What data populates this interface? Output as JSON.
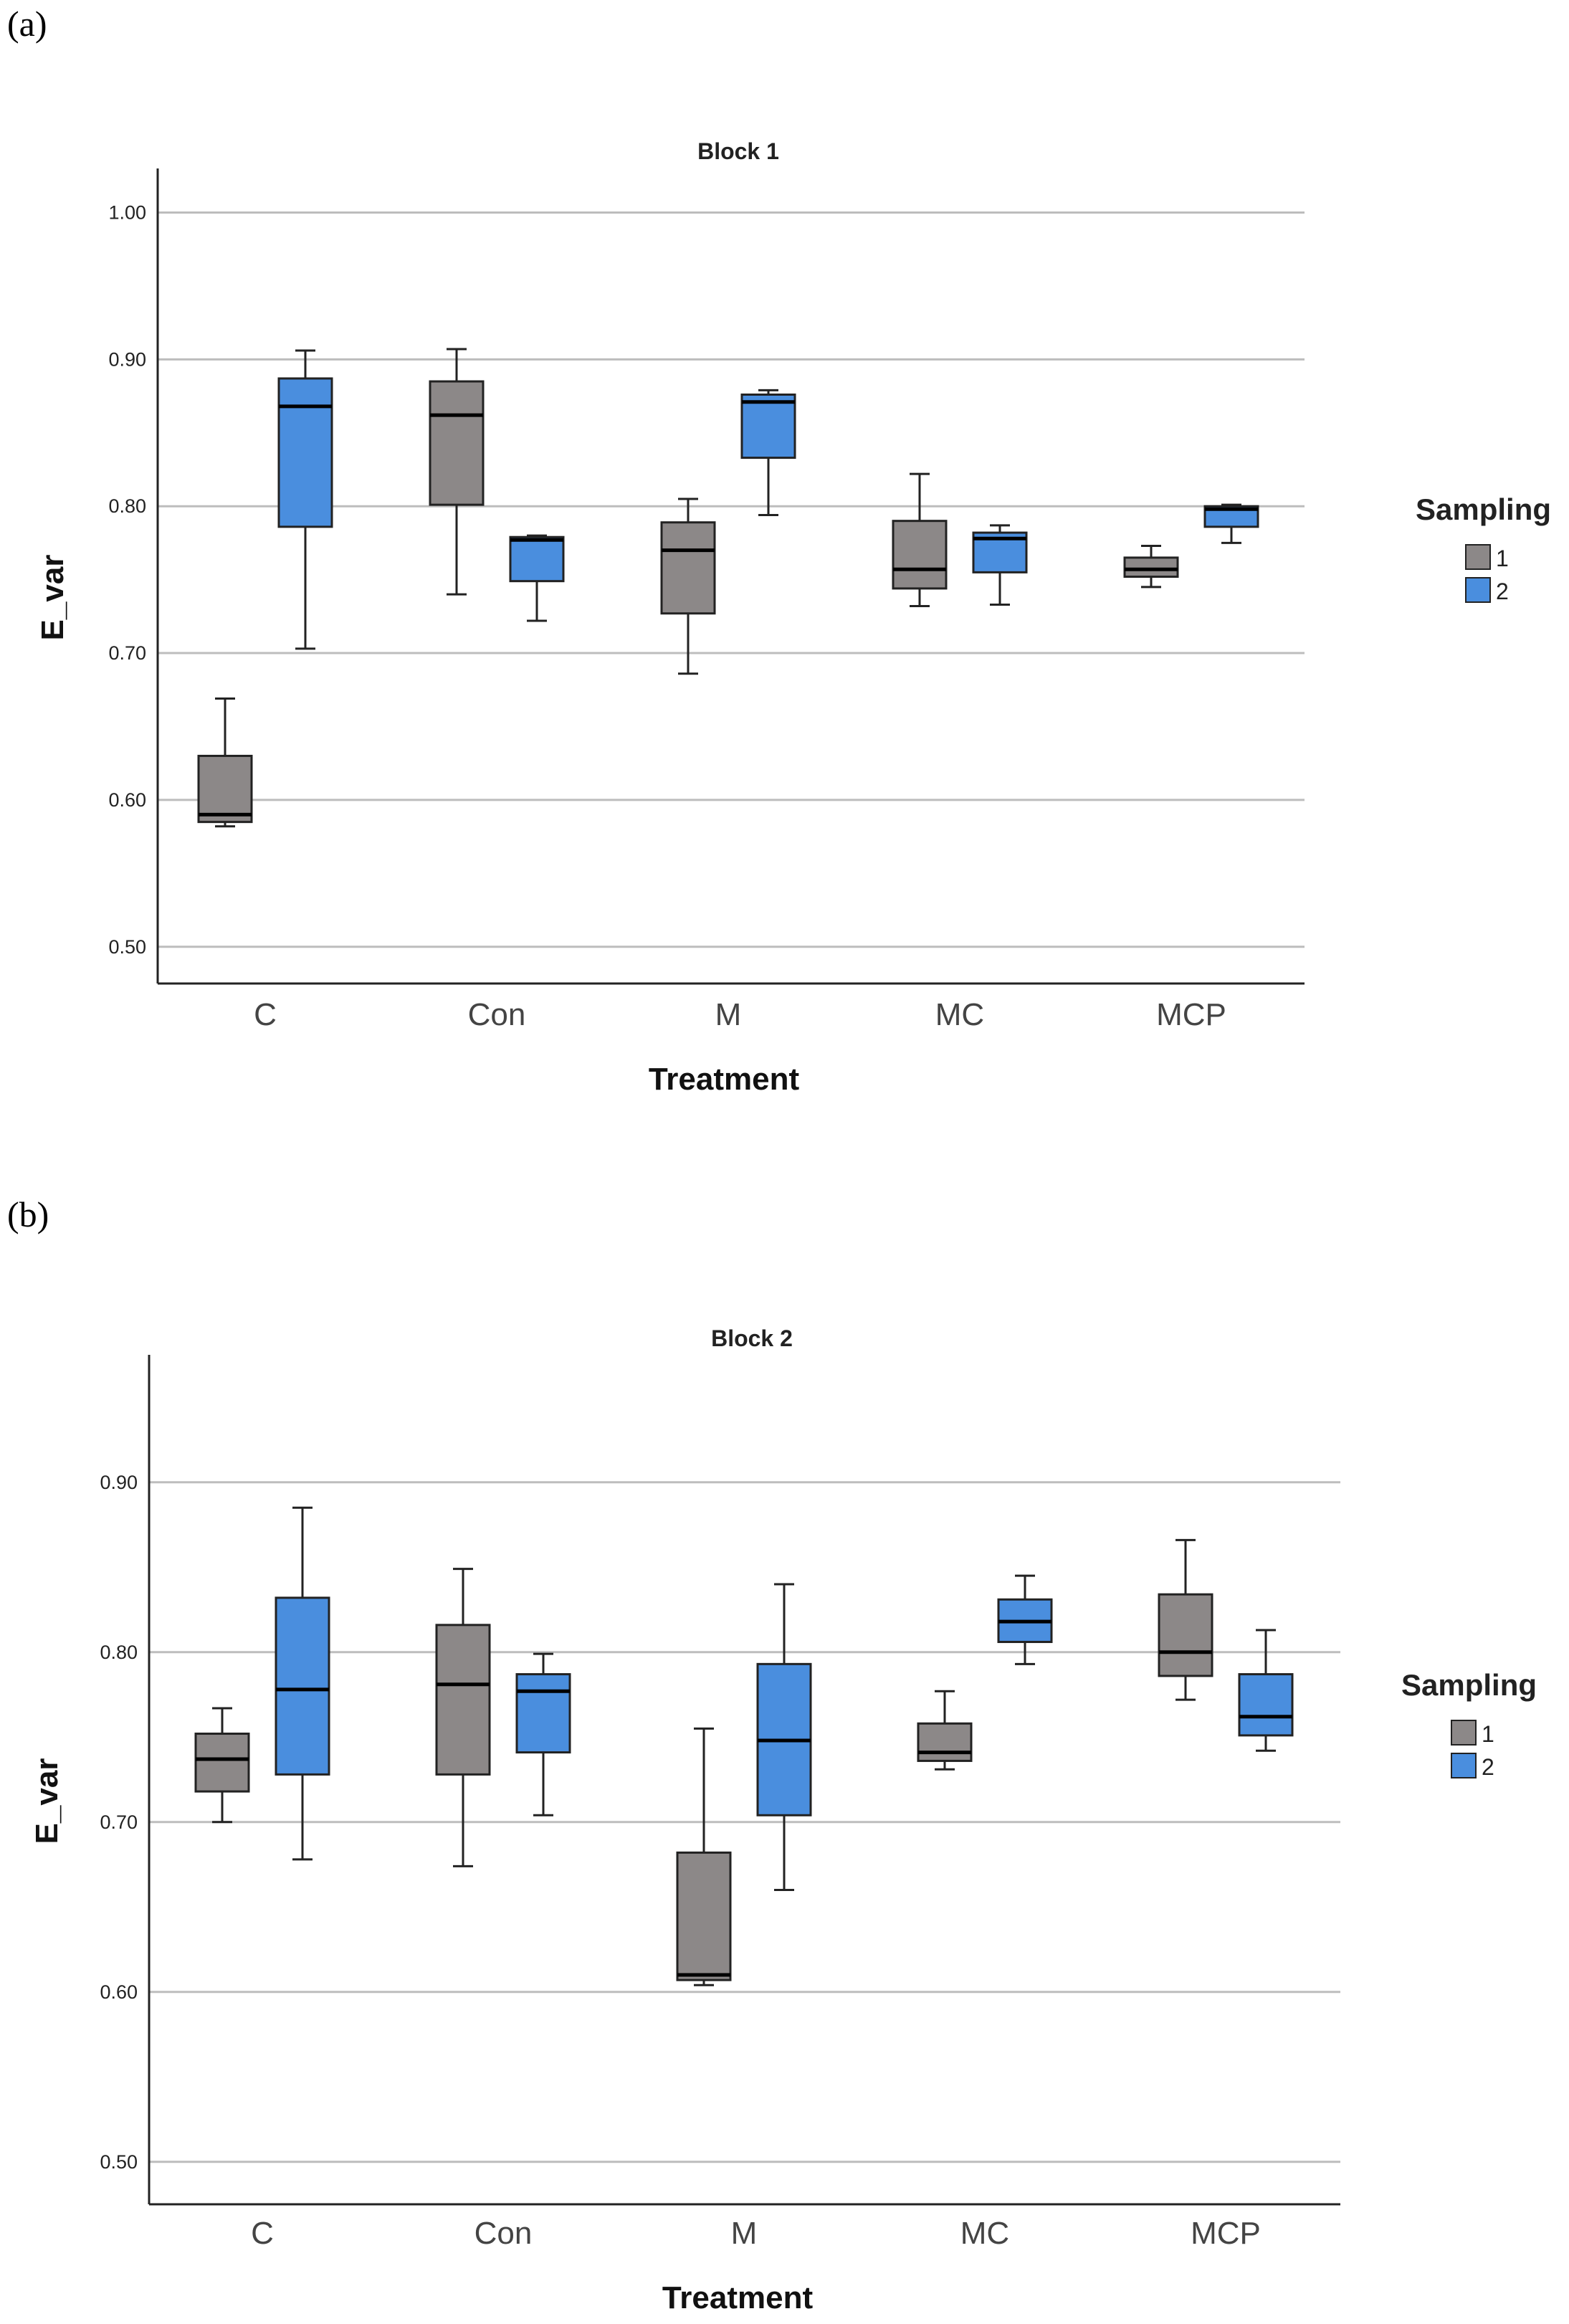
{
  "panels": [
    {
      "label": "(a)"
    },
    {
      "label": "(b)"
    }
  ],
  "colors": {
    "sampling1": "#8c8888",
    "sampling2": "#4a8ede",
    "grid": "#bdbdbd",
    "axis": "#222222",
    "whisker": "#222222"
  },
  "chart_data": [
    {
      "type": "box",
      "title": "Block 1",
      "xlabel": "Treatment",
      "ylabel": "E_var",
      "categories": [
        "C",
        "Con",
        "M",
        "MC",
        "MCP"
      ],
      "ylim": [
        0.475,
        1.03
      ],
      "yticks": [
        0.5,
        0.6,
        0.7,
        0.8,
        0.9,
        1.0
      ],
      "ytick_labels": [
        "0.50",
        "0.60",
        "0.70",
        "0.80",
        "0.90",
        "1.00"
      ],
      "grid": true,
      "legend": {
        "title": "Sampling",
        "entries": [
          "1",
          "2"
        ],
        "position": "right"
      },
      "series": [
        {
          "name": "1",
          "boxes": [
            {
              "min": 0.582,
              "q1": 0.585,
              "median": 0.59,
              "q3": 0.63,
              "max": 0.669
            },
            {
              "min": 0.74,
              "q1": 0.801,
              "median": 0.862,
              "q3": 0.885,
              "max": 0.907
            },
            {
              "min": 0.686,
              "q1": 0.727,
              "median": 0.77,
              "q3": 0.789,
              "max": 0.805
            },
            {
              "min": 0.732,
              "q1": 0.744,
              "median": 0.757,
              "q3": 0.79,
              "max": 0.822
            },
            {
              "min": 0.745,
              "q1": 0.752,
              "median": 0.757,
              "q3": 0.765,
              "max": 0.773
            }
          ]
        },
        {
          "name": "2",
          "boxes": [
            {
              "min": 0.703,
              "q1": 0.786,
              "median": 0.868,
              "q3": 0.887,
              "max": 0.906
            },
            {
              "min": 0.722,
              "q1": 0.749,
              "median": 0.777,
              "q3": 0.779,
              "max": 0.78
            },
            {
              "min": 0.794,
              "q1": 0.833,
              "median": 0.871,
              "q3": 0.876,
              "max": 0.879
            },
            {
              "min": 0.733,
              "q1": 0.755,
              "median": 0.778,
              "q3": 0.782,
              "max": 0.787
            },
            {
              "min": 0.775,
              "q1": 0.786,
              "median": 0.798,
              "q3": 0.8,
              "max": 0.801
            }
          ]
        }
      ]
    },
    {
      "type": "box",
      "title": "Block 2",
      "xlabel": "Treatment",
      "ylabel": "E_var",
      "categories": [
        "C",
        "Con",
        "M",
        "MC",
        "MCP"
      ],
      "ylim": [
        0.475,
        0.975
      ],
      "yticks": [
        0.5,
        0.6,
        0.7,
        0.8,
        0.9
      ],
      "ytick_labels": [
        "0.50",
        "0.60",
        "0.70",
        "0.80",
        "0.90"
      ],
      "grid": true,
      "legend": {
        "title": "Sampling",
        "entries": [
          "1",
          "2"
        ],
        "position": "right"
      },
      "series": [
        {
          "name": "1",
          "boxes": [
            {
              "min": 0.7,
              "q1": 0.718,
              "median": 0.737,
              "q3": 0.752,
              "max": 0.767
            },
            {
              "min": 0.674,
              "q1": 0.728,
              "median": 0.781,
              "q3": 0.816,
              "max": 0.849
            },
            {
              "min": 0.604,
              "q1": 0.607,
              "median": 0.61,
              "q3": 0.682,
              "max": 0.755
            },
            {
              "min": 0.731,
              "q1": 0.736,
              "median": 0.741,
              "q3": 0.758,
              "max": 0.777
            },
            {
              "min": 0.772,
              "q1": 0.786,
              "median": 0.8,
              "q3": 0.834,
              "max": 0.866
            }
          ]
        },
        {
          "name": "2",
          "boxes": [
            {
              "min": 0.678,
              "q1": 0.728,
              "median": 0.778,
              "q3": 0.832,
              "max": 0.885
            },
            {
              "min": 0.704,
              "q1": 0.741,
              "median": 0.777,
              "q3": 0.787,
              "max": 0.799
            },
            {
              "min": 0.66,
              "q1": 0.704,
              "median": 0.748,
              "q3": 0.793,
              "max": 0.84
            },
            {
              "min": 0.793,
              "q1": 0.806,
              "median": 0.818,
              "q3": 0.831,
              "max": 0.845
            },
            {
              "min": 0.742,
              "q1": 0.751,
              "median": 0.762,
              "q3": 0.787,
              "max": 0.813
            }
          ]
        }
      ]
    }
  ]
}
